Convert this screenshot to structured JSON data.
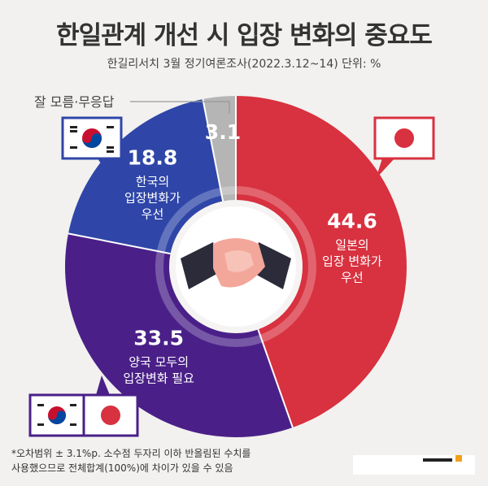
{
  "header": {
    "title": "한일관계 개선 시 입장 변화의 중요도",
    "subtitle": "한길리서치 3월 정기여론조사(2022.3.12~14) 단위: %"
  },
  "chart_data": {
    "type": "pie",
    "title": "한일관계 개선 시 입장 변화의 중요도",
    "subtitle": "한길리서치 3월 정기여론조사(2022.3.12~14) 단위: %",
    "slices": [
      {
        "value": 44.6,
        "label_lines": [
          "일본의",
          "입장 변화가",
          "우선"
        ],
        "color": "#d8313f"
      },
      {
        "value": 33.5,
        "label_lines": [
          "양국 모두의",
          "입장변화 필요"
        ],
        "color": "#4a2088"
      },
      {
        "value": 18.8,
        "label_lines": [
          "한국의",
          "입장변화가",
          "우선"
        ],
        "color": "#2f46a8"
      },
      {
        "value": 3.1,
        "label_lines": [],
        "color": "#b5b5b5"
      }
    ],
    "value_labels": [
      "44.6",
      "33.5",
      "18.8",
      "3.1"
    ],
    "dont_know_label": "잘 모름·무응답"
  },
  "footnote": {
    "line1": "*오차범위 ± 3.1%p. 소수점 두자리 이하 반올림된 수치를",
    "line2": "사용했으므로 전체합계(100%)에 차이가 있을 수 있음"
  },
  "colors": {
    "japan": "#d8313f",
    "both": "#4a2088",
    "korea": "#2f46a8",
    "unknown": "#b5b5b5"
  }
}
